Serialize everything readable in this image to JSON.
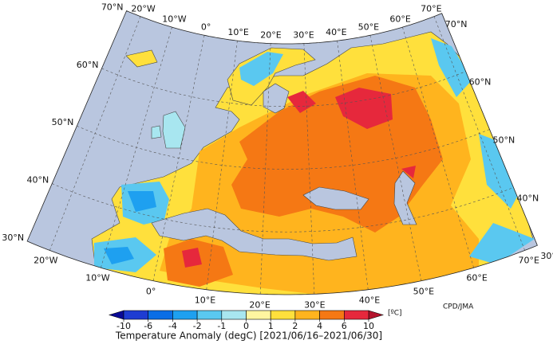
{
  "map": {
    "title": "Temperature Anomaly (degC) [2021/06/16–2021/06/30]",
    "credit": "CPD/JMA",
    "graticule": {
      "top": [
        "20°W",
        "10°W",
        "0°",
        "10°E",
        "20°E",
        "30°E",
        "40°E",
        "50°E",
        "60°E",
        "70°E"
      ],
      "bottom": [
        "20°W",
        "10°W",
        "0°",
        "10°E",
        "20°E",
        "30°E",
        "40°E",
        "50°E",
        "60°E",
        "70°E"
      ],
      "left": [
        "70°N",
        "60°N",
        "50°N",
        "40°N",
        "30°N"
      ],
      "right": [
        "70°N",
        "60°N",
        "50°N",
        "40°N",
        "30°N"
      ]
    },
    "colorbar": {
      "ticks": [
        -10,
        -6,
        -4,
        -2,
        -1,
        0,
        1,
        2,
        4,
        6,
        10
      ],
      "colors": [
        "#1e3cd2",
        "#0a6ee6",
        "#1ea0f0",
        "#5ac8f0",
        "#a8e6f0",
        "#fff5a0",
        "#ffe03c",
        "#ffb41e",
        "#f57814",
        "#e6283c"
      ],
      "under_color": "#0a0a96",
      "over_color": "#b4142d",
      "unit": "[ºC]"
    }
  }
}
